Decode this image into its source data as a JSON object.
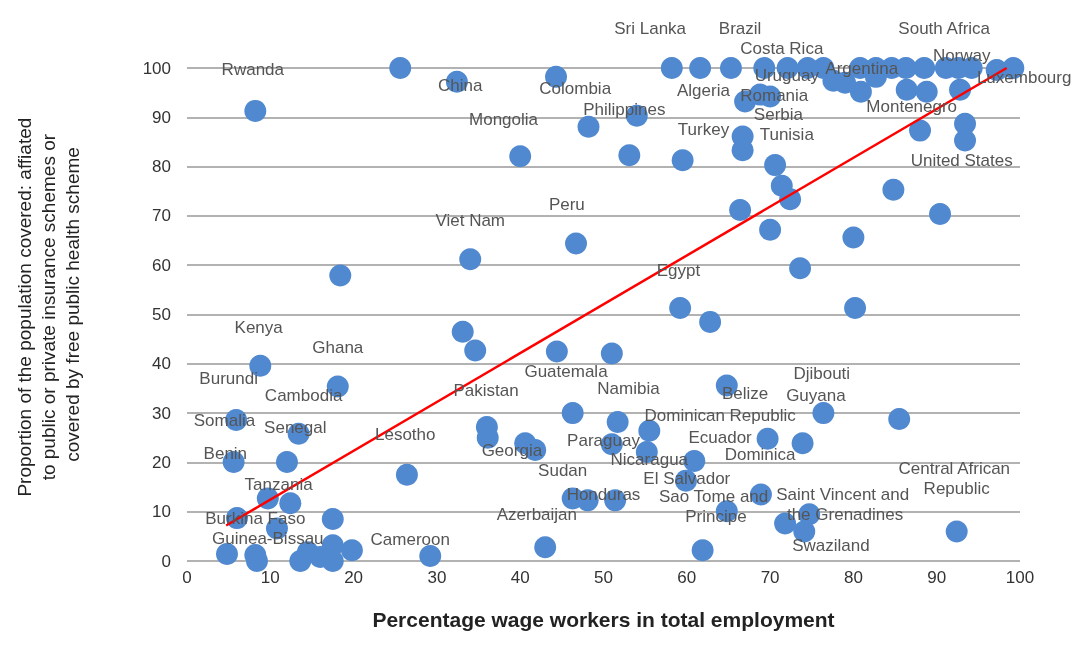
{
  "chart_data": {
    "type": "scatter",
    "xlabel": "Percentage wage workers in total employment",
    "ylabel": "Proportion of the population covered: affiated to public or private insurance schemes or covered by free public health scheme",
    "xlim": [
      0,
      100
    ],
    "xticks": [
      0,
      10,
      20,
      30,
      40,
      50,
      60,
      70,
      80,
      90,
      100
    ],
    "ylim": [
      0,
      100
    ],
    "yticks": [
      0,
      10,
      20,
      30,
      40,
      50,
      60,
      70,
      80,
      90,
      100
    ],
    "grid": "y",
    "series": [
      {
        "marker": "circle",
        "color": "#5089d0",
        "x": [
          25.6,
          32.4,
          44.3,
          8.2,
          58.2,
          61.6,
          65.3,
          69.3,
          72.1,
          74.5,
          76.4,
          77.6,
          79.0,
          80.8,
          80.9,
          82.7,
          82.7,
          84.6,
          86.3,
          86.4,
          88.5,
          88.8,
          91.1,
          92.6,
          92.8,
          94.2,
          97.2,
          99.2,
          54.0,
          67.0,
          68.8,
          70.0,
          48.2,
          40.0,
          53.1,
          59.5,
          66.7,
          66.7,
          70.6,
          71.4,
          72.4,
          66.4,
          70.0,
          73.6,
          80.0,
          84.8,
          90.4,
          88.0,
          93.4,
          93.4,
          46.7,
          34.0,
          18.4,
          33.1,
          34.6,
          44.4,
          51.0,
          8.8,
          18.1,
          46.3,
          51.7,
          5.9,
          13.4,
          36.0,
          36.1,
          40.6,
          41.8,
          51.0,
          5.6,
          12.0,
          26.4,
          9.7,
          12.4,
          46.3,
          48.1,
          51.4,
          6.0,
          17.5,
          10.8,
          43.0,
          29.2,
          4.8,
          8.2,
          8.4,
          14.5,
          13.6,
          16.0,
          17.5,
          19.8,
          17.5,
          59.2,
          62.8,
          80.2,
          64.8,
          55.5,
          76.4,
          85.5,
          55.2,
          69.7,
          73.9,
          60.9,
          59.9,
          64.8,
          68.9,
          71.8,
          74.7,
          74.1,
          92.4,
          61.9
        ],
        "values": [
          100,
          97.2,
          98.2,
          91.3,
          100,
          100,
          100,
          100,
          100,
          100,
          100,
          97.4,
          97.0,
          100,
          95.2,
          100,
          98.2,
          100,
          100,
          95.6,
          100,
          95.2,
          100,
          100,
          95.6,
          100,
          99.6,
          100,
          90.3,
          93.2,
          94.6,
          94.2,
          88.1,
          82.1,
          82.3,
          81.3,
          86.1,
          83.3,
          80.3,
          76.1,
          73.4,
          71.2,
          67.2,
          59.4,
          65.6,
          75.3,
          70.4,
          87.3,
          88.7,
          85.3,
          64.4,
          61.2,
          57.9,
          46.5,
          42.7,
          42.5,
          42.1,
          39.6,
          35.4,
          30.0,
          28.2,
          28.6,
          25.8,
          27.2,
          25.0,
          23.9,
          22.5,
          23.7,
          20.1,
          20.1,
          17.5,
          12.7,
          11.7,
          12.7,
          12.3,
          12.3,
          8.7,
          8.5,
          6.6,
          2.8,
          1.0,
          1.4,
          1.2,
          0,
          1.8,
          0,
          0.8,
          0,
          2.2,
          3.2,
          51.3,
          48.5,
          51.3,
          35.6,
          26.4,
          30.0,
          28.8,
          22.1,
          24.8,
          23.9,
          20.3,
          16.3,
          10.1,
          13.5,
          7.6,
          9.5,
          6.0,
          6.0,
          2.2
        ]
      },
      {
        "type": "line",
        "marker": "none",
        "color": "#ff0000",
        "x": [
          4.7,
          98.4
        ],
        "values": [
          7.2,
          100
        ]
      }
    ],
    "annotations": [
      "Rwanda",
      "China",
      "Colombia",
      "Mongolia",
      "Viet Nam",
      "Costa Rica",
      "Uruguay",
      "Norway",
      "Luxembourg",
      "United States",
      "Ecuador",
      "Tanzania",
      "Guinea-Bissau",
      "Sri Lanka",
      "Brazil",
      "South Africa",
      "Argentina",
      "Romania",
      "Algeria",
      "Serbia",
      "Tunisia",
      "Montenegro",
      "Philippines",
      "Turkey",
      "Peru",
      "Egypt",
      "Kenya",
      "Ghana",
      "Burundi",
      "Cambodia",
      "Pakistan",
      "Guatemala",
      "Namibia",
      "Somalia",
      "Senegal",
      "Lesotho",
      "Georgia",
      "Sudan",
      "Paraguay",
      "Nicaragua",
      "El Salvador",
      "Honduras",
      "Azerbaijan",
      "Benin",
      "Burkina Faso",
      "Cameroon",
      "Dominican Republic",
      "Belize",
      "Djibouti",
      "Guyana",
      "Dominica",
      "Sao Tome and Principe",
      "Saint Vincent and the Grenadines",
      "Swaziland",
      "Central African Republic"
    ]
  }
}
